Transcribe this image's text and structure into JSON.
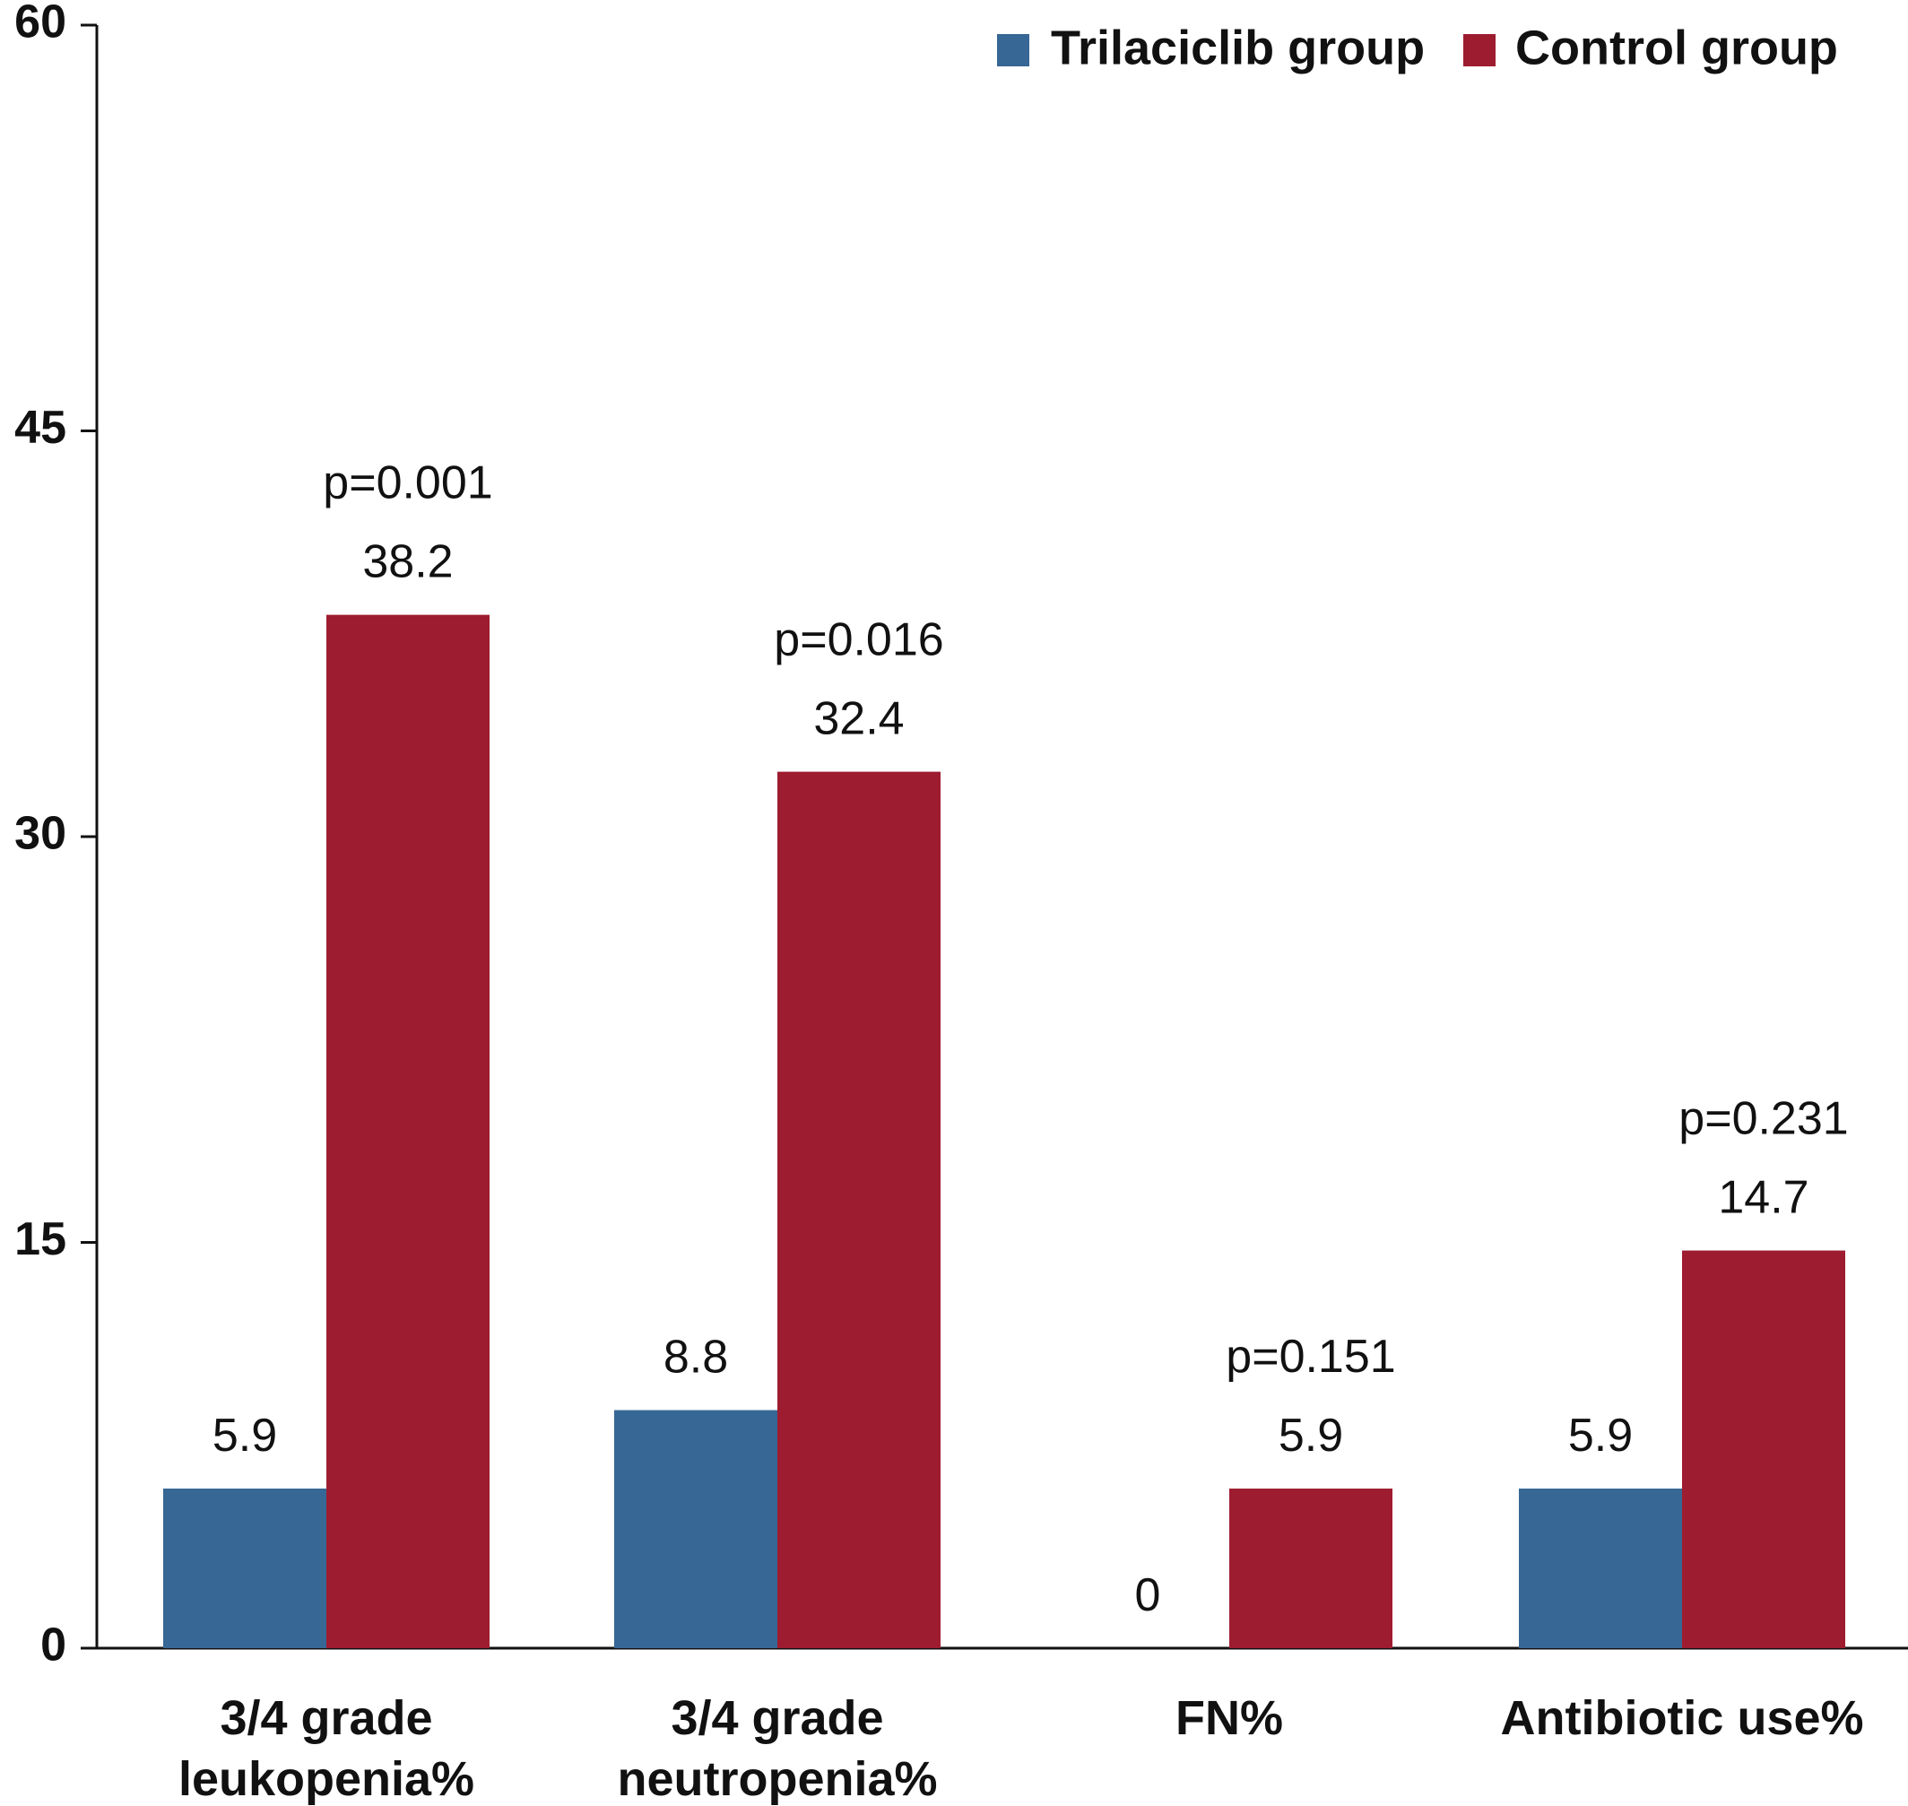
{
  "chart_data": {
    "type": "bar",
    "title": "",
    "xlabel": "",
    "ylabel": "",
    "ylim": [
      0,
      60
    ],
    "yticks": [
      0,
      15,
      30,
      45,
      60
    ],
    "grid": false,
    "legend_position": "top-right",
    "categories": [
      [
        "3/4 grade",
        "leukopenia%"
      ],
      [
        "3/4 grade",
        "neutropenia%"
      ],
      [
        "FN%"
      ],
      [
        "Antibiotic use%"
      ]
    ],
    "series": [
      {
        "name": "Trilaciclib group",
        "color": "#376794",
        "values": [
          5.9,
          8.8,
          0,
          5.9
        ]
      },
      {
        "name": "Control group",
        "color": "#9e1c30",
        "values": [
          38.2,
          32.4,
          5.9,
          14.7
        ]
      }
    ],
    "annotations": [
      "p=0.001",
      "p=0.016",
      "p=0.151",
      "p=0.231"
    ]
  }
}
